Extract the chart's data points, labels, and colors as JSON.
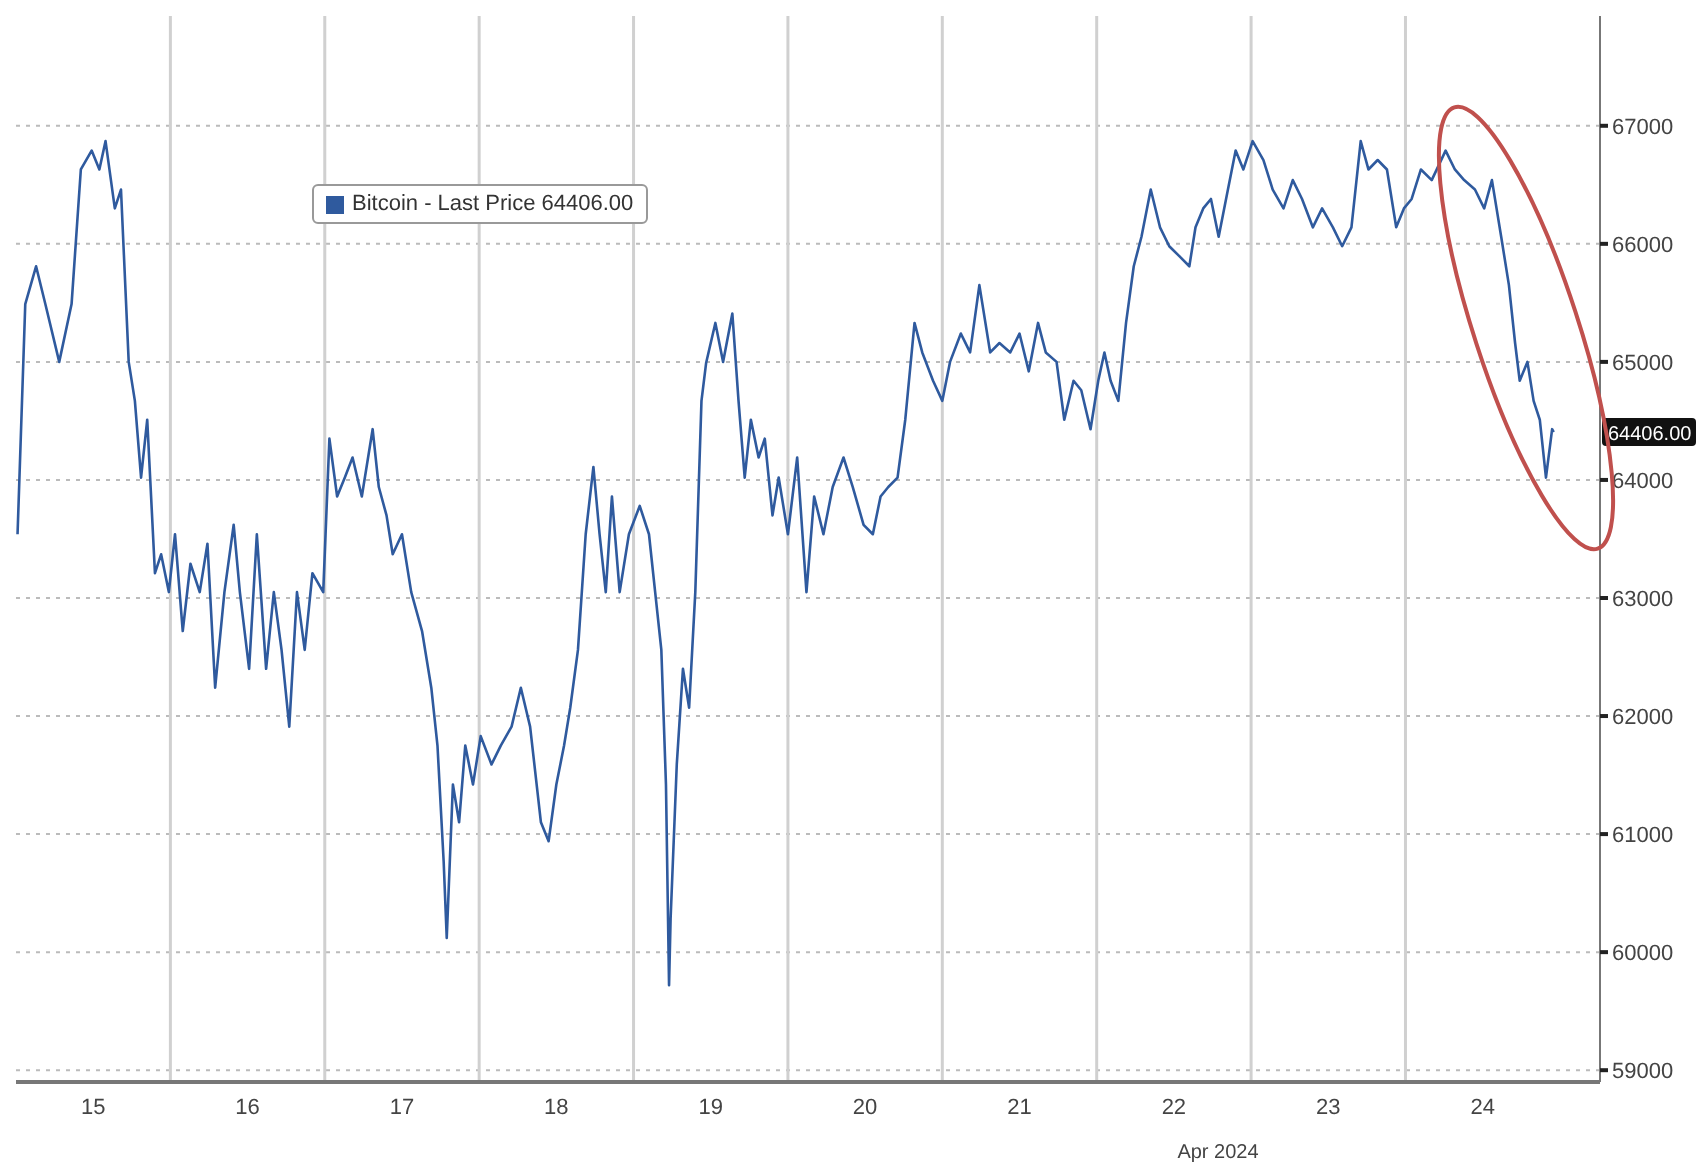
{
  "chart_data": {
    "type": "line",
    "xlabel": "Apr 2024",
    "x": [
      15.01,
      15.06,
      15.13,
      15.19,
      15.28,
      15.36,
      15.42,
      15.49,
      15.54,
      15.58,
      15.64,
      15.68,
      15.73,
      15.77,
      15.81,
      15.85,
      15.9,
      15.94,
      15.99,
      16.03,
      16.08,
      16.13,
      16.19,
      16.24,
      16.29,
      16.35,
      16.41,
      16.45,
      16.51,
      16.56,
      16.62,
      16.67,
      16.72,
      16.77,
      16.82,
      16.87,
      16.92,
      16.99,
      17.03,
      17.08,
      17.13,
      17.18,
      17.24,
      17.31,
      17.35,
      17.4,
      17.44,
      17.5,
      17.56,
      17.63,
      17.69,
      17.73,
      17.77,
      17.79,
      17.83,
      17.87,
      17.91,
      17.96,
      18.01,
      18.08,
      18.14,
      18.21,
      18.27,
      18.33,
      18.4,
      18.45,
      18.5,
      18.55,
      18.59,
      18.64,
      18.69,
      18.74,
      18.78,
      18.82,
      18.86,
      18.91,
      18.97,
      19.04,
      19.1,
      19.14,
      19.18,
      19.21,
      19.23,
      19.24,
      19.28,
      19.32,
      19.36,
      19.4,
      19.44,
      19.47,
      19.53,
      19.58,
      19.64,
      19.68,
      19.72,
      19.76,
      19.81,
      19.85,
      19.9,
      19.94,
      20.0,
      20.06,
      20.12,
      20.17,
      20.23,
      20.29,
      20.36,
      20.42,
      20.49,
      20.55,
      20.6,
      20.65,
      20.71,
      20.76,
      20.82,
      20.87,
      20.94,
      21.0,
      21.05,
      21.12,
      21.18,
      21.24,
      21.31,
      21.37,
      21.44,
      21.5,
      21.56,
      21.62,
      21.67,
      21.74,
      21.79,
      21.85,
      21.9,
      21.96,
      22.01,
      22.05,
      22.09,
      22.14,
      22.19,
      22.24,
      22.29,
      22.35,
      22.41,
      22.47,
      22.54,
      22.6,
      22.64,
      22.69,
      22.74,
      22.79,
      22.85,
      22.9,
      22.95,
      23.01,
      23.08,
      23.14,
      23.21,
      23.27,
      23.33,
      23.4,
      23.46,
      23.53,
      23.59,
      23.65,
      23.71,
      23.76,
      23.82,
      23.88,
      23.94,
      23.99,
      24.04,
      24.1,
      24.17,
      24.26,
      24.32,
      24.38,
      24.45,
      24.51,
      24.56,
      24.62,
      24.67,
      24.71,
      24.74,
      24.79,
      24.83,
      24.87,
      24.91,
      24.95,
      24.96
    ],
    "series": [
      {
        "name": "Bitcoin - Last Price 64406.00",
        "color": "#2f5a9e",
        "values": [
          63540,
          65490,
          65810,
          65490,
          65000,
          65490,
          66630,
          66790,
          66630,
          66870,
          66300,
          66460,
          65000,
          64670,
          64020,
          64510,
          63210,
          63370,
          63050,
          63540,
          62720,
          63290,
          63050,
          63460,
          62240,
          63050,
          63620,
          63050,
          62400,
          63540,
          62400,
          63050,
          62560,
          61910,
          63050,
          62560,
          63210,
          63050,
          64350,
          63860,
          64020,
          64190,
          63860,
          64430,
          63940,
          63700,
          63370,
          63540,
          63050,
          62720,
          62240,
          61750,
          60770,
          60120,
          61420,
          61100,
          61750,
          61420,
          61830,
          61590,
          61750,
          61910,
          62240,
          61910,
          61100,
          60940,
          61420,
          61750,
          62070,
          62560,
          63540,
          64110,
          63540,
          63050,
          63860,
          63050,
          63540,
          63780,
          63540,
          63050,
          62560,
          61420,
          59720,
          60280,
          61590,
          62400,
          62070,
          63050,
          64670,
          64990,
          65330,
          65000,
          65410,
          64670,
          64020,
          64510,
          64190,
          64350,
          63700,
          64020,
          63540,
          64190,
          63050,
          63860,
          63540,
          63940,
          64190,
          63940,
          63620,
          63540,
          63860,
          63940,
          64020,
          64510,
          65330,
          65080,
          64840,
          64670,
          65000,
          65240,
          65080,
          65650,
          65080,
          65160,
          65080,
          65240,
          64920,
          65330,
          65080,
          65000,
          64510,
          64840,
          64760,
          64430,
          64840,
          65080,
          64840,
          64670,
          65330,
          65810,
          66060,
          66460,
          66140,
          65980,
          65890,
          65810,
          66140,
          66300,
          66380,
          66060,
          66460,
          66790,
          66630,
          66870,
          66710,
          66460,
          66300,
          66540,
          66380,
          66140,
          66300,
          66140,
          65980,
          66140,
          66870,
          66630,
          66710,
          66630,
          66140,
          66300,
          66380,
          66630,
          66540,
          66790,
          66630,
          66540,
          66460,
          66300,
          66540,
          66060,
          65650,
          65160,
          64840,
          65000,
          64670,
          64510,
          64020,
          64430,
          64406
        ]
      }
    ],
    "xlim": [
      15,
      25.26
    ],
    "xticks": [
      {
        "value": 15.5,
        "label": "15"
      },
      {
        "value": 16,
        "label": null
      },
      {
        "value": 16.5,
        "label": "16"
      },
      {
        "value": 17,
        "label": null
      },
      {
        "value": 17.5,
        "label": "17"
      },
      {
        "value": 18,
        "label": null
      },
      {
        "value": 18.5,
        "label": "18"
      },
      {
        "value": 19,
        "label": null
      },
      {
        "value": 19.5,
        "label": "19"
      },
      {
        "value": 20,
        "label": null
      },
      {
        "value": 20.5,
        "label": "20"
      },
      {
        "value": 21,
        "label": null
      },
      {
        "value": 21.5,
        "label": "21"
      },
      {
        "value": 22,
        "label": null
      },
      {
        "value": 22.5,
        "label": "22"
      },
      {
        "value": 23,
        "label": null
      },
      {
        "value": 23.5,
        "label": "23"
      },
      {
        "value": 24,
        "label": null
      },
      {
        "value": 24.5,
        "label": "24"
      }
    ],
    "ylim": [
      58900,
      67930
    ],
    "yticks": [
      59000,
      60000,
      61000,
      62000,
      63000,
      64000,
      65000,
      66000,
      67000
    ],
    "annotations": [
      {
        "text": "64406.00",
        "x": 24.96,
        "y": 64406
      }
    ],
    "grid": true,
    "legend": "top left",
    "marker": "none",
    "line_style": "solid"
  }
}
